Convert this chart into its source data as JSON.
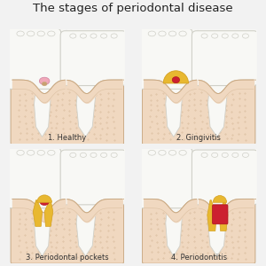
{
  "title": "The stages of periodontal disease",
  "title_fontsize": 9.5,
  "bg_color": "#f2f2f2",
  "tooth_color": "#f8f8f5",
  "tooth_outline": "#d0d0c8",
  "tooth_shadow": "#e8e8e0",
  "gum_color": "#f0d8c0",
  "gum_outline": "#c8a882",
  "gum_dark": "#d4b890",
  "healthy_pink": "#f0a8b8",
  "healthy_tan": "#c8a070",
  "tartar_gold": "#d4a020",
  "tartar_light": "#e8b830",
  "red_inflamed": "#cc2030",
  "red_dark": "#aa1020",
  "pocket_brown": "#b07818",
  "labels": [
    "1. Healthy",
    "2. Gingivitis",
    "3. Periodontal pockets",
    "4. Periodontitis"
  ],
  "panel_bg": "#f8f8f5",
  "label_fontsize": 6.0,
  "dot_color": "#c8a882"
}
